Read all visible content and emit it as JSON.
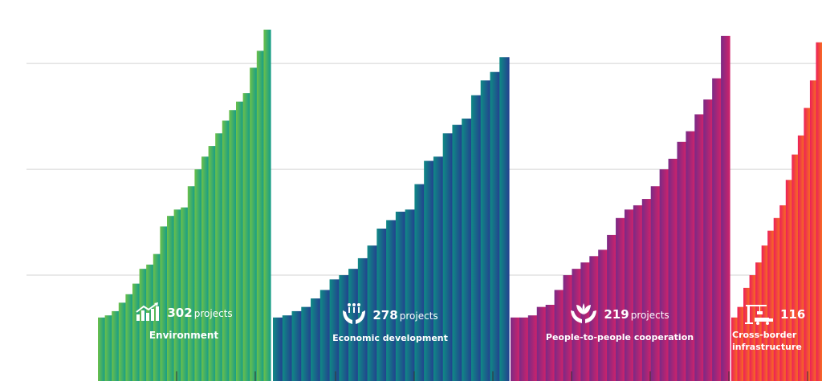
{
  "colors": {
    "gridline": "#d3d3d3",
    "tick": "#333333",
    "environment": [
      "#6cc04a",
      "#139c8a"
    ],
    "economic": [
      "#0f8a85",
      "#233f8f"
    ],
    "people": [
      "#7a2a86",
      "#d1226a"
    ],
    "infrastructure": [
      "#ec1f5a",
      "#f8701f"
    ]
  },
  "chart_data": {
    "type": "bar",
    "title": "",
    "xlabel": "",
    "ylabel": "",
    "grid": true,
    "series": [
      {
        "name": "Environment",
        "count": "302",
        "unit": "projects",
        "icon": "rising-chart-icon",
        "gradient": "environment",
        "values": [
          3.0,
          3.1,
          3.3,
          3.7,
          4.1,
          4.6,
          5.3,
          5.5,
          6.0,
          7.3,
          7.8,
          8.1,
          8.2,
          9.2,
          10.0,
          10.6,
          11.1,
          11.7,
          12.3,
          12.8,
          13.2,
          13.6,
          14.8,
          15.6,
          16.6
        ]
      },
      {
        "name": "Economic development",
        "count": "278",
        "unit": "projects",
        "icon": "hands-with-people-icon",
        "gradient": "economic",
        "values": [
          3.0,
          3.1,
          3.3,
          3.5,
          3.9,
          4.3,
          4.8,
          5.0,
          5.3,
          5.8,
          6.4,
          7.2,
          7.6,
          8.0,
          8.1,
          9.3,
          10.4,
          10.6,
          11.7,
          12.1,
          12.4,
          13.5,
          14.2,
          14.6,
          15.3
        ]
      },
      {
        "name": "People-to-people cooperation",
        "count": "219",
        "unit": "projects",
        "icon": "hands-with-leaves-icon",
        "gradient": "people",
        "values": [
          3.0,
          3.0,
          3.1,
          3.5,
          3.6,
          4.3,
          5.0,
          5.3,
          5.6,
          5.9,
          6.2,
          6.9,
          7.7,
          8.1,
          8.3,
          8.6,
          9.2,
          10.0,
          10.5,
          11.3,
          11.8,
          12.6,
          13.3,
          14.3,
          16.3
        ]
      },
      {
        "name": "Cross-border infrastructure",
        "count": "116",
        "unit": "",
        "icon": "crane-and-truck-icon",
        "gradient": "infrastructure",
        "values": [
          3.0,
          3.5,
          4.4,
          5.0,
          5.6,
          6.4,
          7.1,
          7.7,
          8.3,
          9.5,
          10.7,
          11.6,
          12.9,
          14.2,
          16.0
        ]
      }
    ],
    "ylim": [
      0,
      18
    ]
  }
}
